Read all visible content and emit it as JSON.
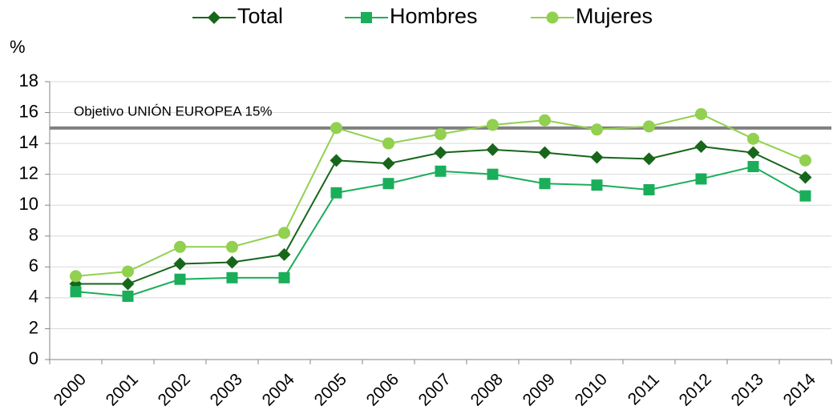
{
  "chart_data": {
    "type": "line",
    "y_label": "%",
    "categories": [
      "2000",
      "2001",
      "2002",
      "2003",
      "2004",
      "2005",
      "2006",
      "2007",
      "2008",
      "2009",
      "2010",
      "2011",
      "2012",
      "2013",
      "2014"
    ],
    "series": [
      {
        "name": "Total",
        "color": "#17661a",
        "marker": "diamond",
        "values": [
          4.9,
          4.9,
          6.2,
          6.3,
          6.8,
          12.9,
          12.7,
          13.4,
          13.6,
          13.4,
          13.1,
          13.0,
          13.8,
          13.4,
          11.8
        ]
      },
      {
        "name": "Hombres",
        "color": "#1aae5a",
        "marker": "square",
        "values": [
          4.4,
          4.1,
          5.2,
          5.3,
          5.3,
          10.8,
          11.4,
          12.2,
          12.0,
          11.4,
          11.3,
          11.0,
          11.7,
          12.5,
          10.6
        ]
      },
      {
        "name": "Mujeres",
        "color": "#92d050",
        "marker": "circle",
        "values": [
          5.4,
          5.7,
          7.3,
          7.3,
          8.2,
          15.0,
          14.0,
          14.6,
          15.2,
          15.5,
          14.9,
          15.1,
          15.9,
          14.3,
          12.9
        ]
      }
    ],
    "reference_line": {
      "value": 15,
      "label": "Objetivo UNIÓN EUROPEA 15%",
      "color": "#808080"
    },
    "ylim": [
      0,
      18
    ],
    "yticks": [
      0,
      2,
      4,
      6,
      8,
      10,
      12,
      14,
      16,
      18
    ],
    "grid": true,
    "legend": "top"
  }
}
